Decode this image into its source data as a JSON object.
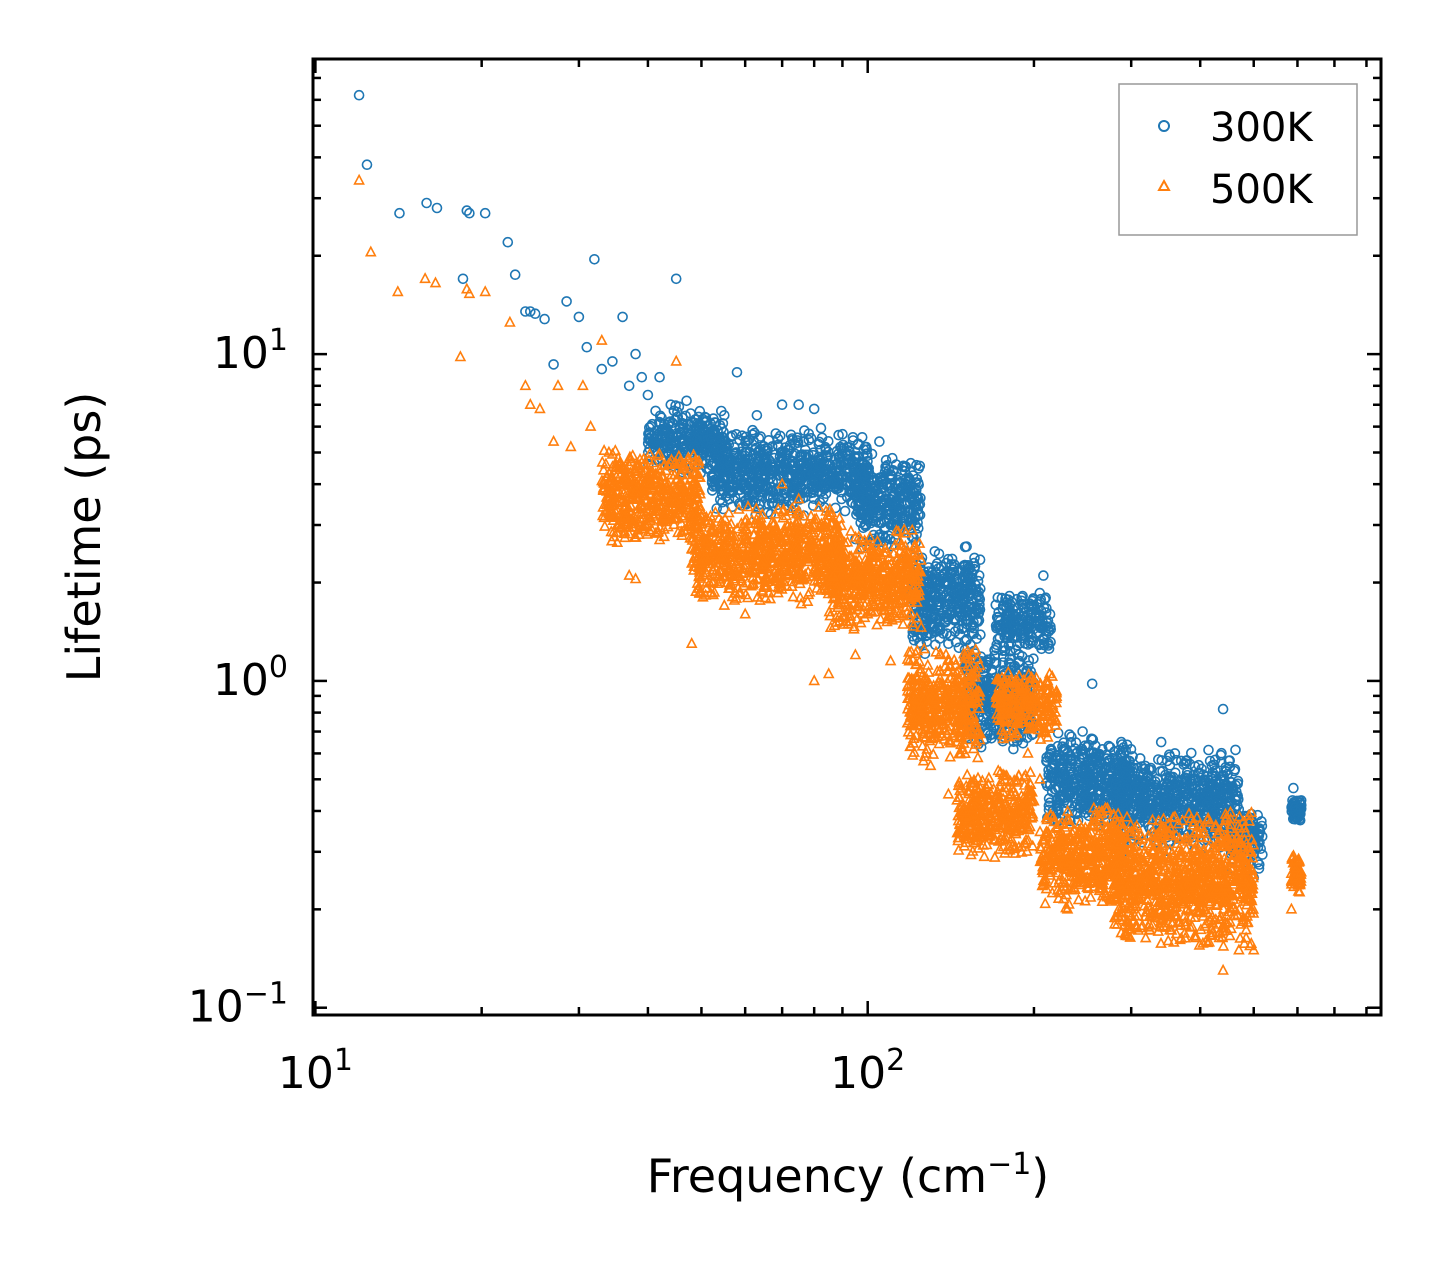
{
  "chart_data": {
    "type": "scatter",
    "title": "",
    "xlabel": "Frequency (cm",
    "xlabel_sup": "−1",
    "xlabel_tail": ")",
    "ylabel": "Lifetime (ps)",
    "xscale": "log",
    "yscale": "log",
    "xlim": [
      9.9,
      850
    ],
    "ylim": [
      0.095,
      80
    ],
    "x_ticks": [
      {
        "value": 10,
        "base": "10",
        "exp": "1"
      },
      {
        "value": 100,
        "base": "10",
        "exp": "2"
      }
    ],
    "y_ticks": [
      {
        "value": 0.1,
        "base": "10",
        "exp": "−1"
      },
      {
        "value": 1,
        "base": "10",
        "exp": "0"
      },
      {
        "value": 10,
        "base": "10",
        "exp": "1"
      }
    ],
    "legend_position": "top-right",
    "series": [
      {
        "name": "300K",
        "marker": "circle",
        "color": "#1f77b4",
        "points": [
          [
            12.0,
            62
          ],
          [
            12.4,
            38
          ],
          [
            14.2,
            27
          ],
          [
            15.9,
            29
          ],
          [
            16.6,
            28
          ],
          [
            18.5,
            17
          ],
          [
            18.8,
            27.5
          ],
          [
            19.0,
            27
          ],
          [
            20.3,
            27
          ],
          [
            22.3,
            22
          ],
          [
            23.0,
            17.5
          ],
          [
            24.0,
            13.5
          ],
          [
            24.5,
            13.5
          ],
          [
            25.0,
            13.3
          ],
          [
            26.0,
            12.8
          ],
          [
            27.0,
            9.3
          ],
          [
            28.5,
            14.5
          ],
          [
            30.0,
            13.0
          ],
          [
            31.0,
            10.5
          ],
          [
            32.0,
            19.5
          ],
          [
            33.0,
            9.0
          ],
          [
            34.5,
            9.5
          ],
          [
            36.0,
            13.0
          ],
          [
            37.0,
            8.0
          ],
          [
            38.0,
            10.0
          ],
          [
            39.0,
            8.5
          ],
          [
            40.0,
            7.5
          ],
          [
            42.0,
            8.5
          ],
          [
            44.0,
            7.0
          ],
          [
            45.0,
            17.0
          ],
          [
            47.0,
            7.2
          ],
          [
            48.0,
            5.0
          ],
          [
            50.0,
            6.0
          ],
          [
            52.0,
            5.5
          ],
          [
            55.0,
            6.5
          ],
          [
            58.0,
            8.8
          ],
          [
            60.0,
            5.0
          ],
          [
            63.0,
            6.5
          ],
          [
            66.0,
            4.5
          ],
          [
            70.0,
            7.0
          ],
          [
            75.0,
            7.0
          ],
          [
            80.0,
            6.8
          ],
          [
            85.0,
            4.0
          ],
          [
            95.0,
            4.5
          ],
          [
            105.0,
            5.4
          ],
          [
            110.0,
            3.0
          ],
          [
            115.0,
            2.3
          ],
          [
            120.0,
            2.0
          ],
          [
            130.0,
            1.5
          ],
          [
            140.0,
            1.3
          ],
          [
            150.0,
            1.1
          ],
          [
            165.0,
            0.95
          ],
          [
            172.0,
            1.8
          ],
          [
            180.0,
            1.6
          ],
          [
            190.0,
            1.8
          ],
          [
            195.0,
            1.4
          ],
          [
            200.0,
            1.7
          ],
          [
            208.0,
            2.1
          ],
          [
            215.0,
            0.6
          ],
          [
            230.0,
            0.55
          ],
          [
            245.0,
            0.7
          ],
          [
            255.0,
            0.98
          ],
          [
            270.0,
            0.5
          ],
          [
            290.0,
            0.3
          ],
          [
            320.0,
            0.45
          ],
          [
            340.0,
            0.65
          ],
          [
            360.0,
            0.6
          ],
          [
            390.0,
            0.45
          ],
          [
            420.0,
            0.55
          ],
          [
            440.0,
            0.82
          ],
          [
            470.0,
            0.35
          ],
          [
            500.0,
            0.25
          ],
          [
            590.0,
            0.47
          ],
          [
            595.0,
            0.4
          ],
          [
            600.0,
            0.38
          ]
        ],
        "bands": [
          {
            "x": [
              40,
              55
            ],
            "y": [
              4.2,
              7.0
            ]
          },
          {
            "x": [
              52,
              100
            ],
            "y": [
              3.2,
              6.0
            ]
          },
          {
            "x": [
              95,
              125
            ],
            "y": [
              2.5,
              5.0
            ]
          },
          {
            "x": [
              120,
              160
            ],
            "y": [
              1.2,
              2.6
            ]
          },
          {
            "x": [
              150,
              200
            ],
            "y": [
              0.6,
              1.3
            ]
          },
          {
            "x": [
              170,
              215
            ],
            "y": [
              1.2,
              1.9
            ]
          },
          {
            "x": [
              210,
              300
            ],
            "y": [
              0.35,
              0.7
            ]
          },
          {
            "x": [
              280,
              470
            ],
            "y": [
              0.3,
              0.62
            ]
          },
          {
            "x": [
              450,
              520
            ],
            "y": [
              0.26,
              0.4
            ]
          },
          {
            "x": [
              585,
              610
            ],
            "y": [
              0.36,
              0.46
            ]
          }
        ]
      },
      {
        "name": "500K",
        "marker": "triangle",
        "color": "#ff7f0e",
        "points": [
          [
            12.0,
            34
          ],
          [
            12.6,
            20.5
          ],
          [
            14.1,
            15.5
          ],
          [
            15.8,
            17
          ],
          [
            16.5,
            16.5
          ],
          [
            18.3,
            9.8
          ],
          [
            18.8,
            15.8
          ],
          [
            19.0,
            15.3
          ],
          [
            20.3,
            15.5
          ],
          [
            22.5,
            12.5
          ],
          [
            24.0,
            8.0
          ],
          [
            24.5,
            7.0
          ],
          [
            25.5,
            6.8
          ],
          [
            27.0,
            5.4
          ],
          [
            27.5,
            8.0
          ],
          [
            29.0,
            5.2
          ],
          [
            30.5,
            8.0
          ],
          [
            31.5,
            6.0
          ],
          [
            33.0,
            11.0
          ],
          [
            34.0,
            5.0
          ],
          [
            35.0,
            4.5
          ],
          [
            37.0,
            2.1
          ],
          [
            38.0,
            2.05
          ],
          [
            40.0,
            3.3
          ],
          [
            42.0,
            2.7
          ],
          [
            45.0,
            9.5
          ],
          [
            48.0,
            1.3
          ],
          [
            50.0,
            2.3
          ],
          [
            55.0,
            1.7
          ],
          [
            60.0,
            1.6
          ],
          [
            70.0,
            4.0
          ],
          [
            75.0,
            3.6
          ],
          [
            80.0,
            1.0
          ],
          [
            85.0,
            1.05
          ],
          [
            95.0,
            1.2
          ],
          [
            100.0,
            1.6
          ],
          [
            110.0,
            1.15
          ],
          [
            120.0,
            1.0
          ],
          [
            130.0,
            0.55
          ],
          [
            140.0,
            0.45
          ],
          [
            150.0,
            0.4
          ],
          [
            160.0,
            0.35
          ],
          [
            170.0,
            0.35
          ],
          [
            175.0,
            0.95
          ],
          [
            185.0,
            1.0
          ],
          [
            195.0,
            0.6
          ],
          [
            205.0,
            0.5
          ],
          [
            215.0,
            0.3
          ],
          [
            230.0,
            0.2
          ],
          [
            250.0,
            0.25
          ],
          [
            265.0,
            0.3
          ],
          [
            280.0,
            0.18
          ],
          [
            300.0,
            0.2
          ],
          [
            320.0,
            0.25
          ],
          [
            350.0,
            0.16
          ],
          [
            380.0,
            0.22
          ],
          [
            410.0,
            0.16
          ],
          [
            440.0,
            0.13
          ],
          [
            470.0,
            0.15
          ],
          [
            500.0,
            0.15
          ],
          [
            585.0,
            0.2
          ],
          [
            590.0,
            0.29
          ],
          [
            600.0,
            0.24
          ]
        ],
        "bands": [
          {
            "x": [
              33,
              50
            ],
            "y": [
              2.6,
              5.2
            ]
          },
          {
            "x": [
              48,
              90
            ],
            "y": [
              1.7,
              3.5
            ]
          },
          {
            "x": [
              85,
              125
            ],
            "y": [
              1.4,
              3.0
            ]
          },
          {
            "x": [
              118,
              160
            ],
            "y": [
              0.55,
              1.3
            ]
          },
          {
            "x": [
              145,
              200
            ],
            "y": [
              0.28,
              0.55
            ]
          },
          {
            "x": [
              170,
              220
            ],
            "y": [
              0.65,
              1.1
            ]
          },
          {
            "x": [
              205,
              290
            ],
            "y": [
              0.2,
              0.42
            ]
          },
          {
            "x": [
              280,
              500
            ],
            "y": [
              0.15,
              0.4
            ]
          },
          {
            "x": [
              585,
              610
            ],
            "y": [
              0.22,
              0.3
            ]
          }
        ]
      }
    ]
  }
}
